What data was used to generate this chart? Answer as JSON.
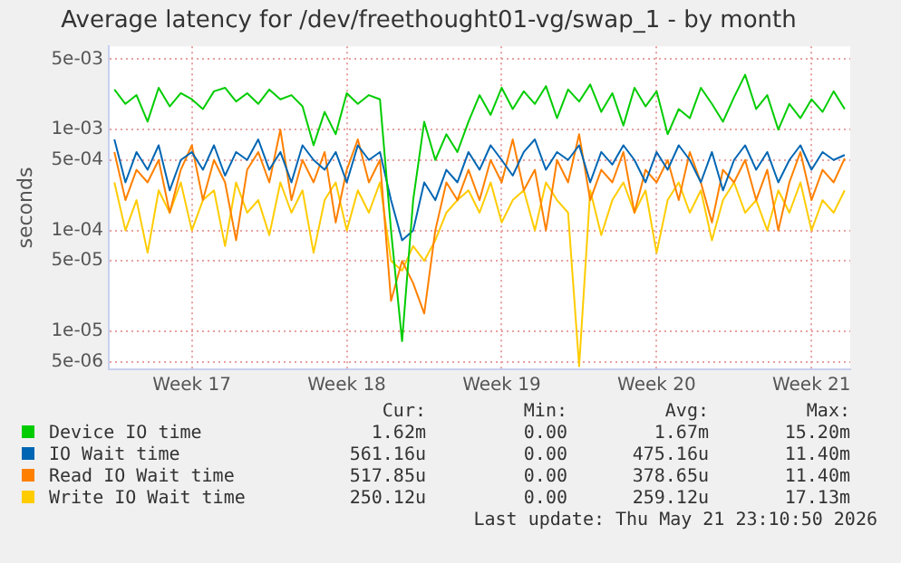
{
  "chart_data": {
    "type": "line",
    "title": "Average latency for /dev/freethought01-vg/swap_1 - by month",
    "ylabel": "seconds",
    "categories": [
      null,
      null,
      null,
      null,
      null,
      null,
      null,
      "Week 17",
      null,
      null,
      null,
      null,
      null,
      null,
      null,
      null,
      null,
      null,
      null,
      null,
      null,
      "Week 18",
      null,
      null,
      null,
      null,
      null,
      null,
      null,
      null,
      null,
      null,
      null,
      null,
      null,
      "Week 19",
      null,
      null,
      null,
      null,
      null,
      null,
      null,
      null,
      null,
      null,
      null,
      null,
      null,
      "Week 20",
      null,
      null,
      null,
      null,
      null,
      null,
      null,
      null,
      null,
      null,
      null,
      null,
      null,
      "Week 21",
      null,
      null,
      null
    ],
    "ylim": [
      4.2e-06,
      0.0067
    ],
    "yticks": [
      {
        "value": 5e-06,
        "label": "5e-06"
      },
      {
        "value": 1e-05,
        "label": "1e-05"
      },
      {
        "value": 5e-05,
        "label": "5e-05"
      },
      {
        "value": 0.0001,
        "label": "1e-04"
      },
      {
        "value": 0.0005,
        "label": "5e-04"
      },
      {
        "value": 0.001,
        "label": "1e-03"
      },
      {
        "value": 0.005,
        "label": "5e-03"
      }
    ],
    "log": "y",
    "grid": true,
    "legend": "bottom",
    "series": [
      {
        "name": "Device IO time",
        "color": "#00cc00",
        "values": [
          0.0025,
          0.0018,
          0.0022,
          0.0012,
          0.0026,
          0.0017,
          0.0023,
          0.002,
          0.0016,
          0.0024,
          0.0026,
          0.0019,
          0.0023,
          0.0018,
          0.0025,
          0.002,
          0.0022,
          0.0017,
          0.0007,
          0.0015,
          0.0009,
          0.0023,
          0.0018,
          0.0022,
          0.002,
          0.0001,
          8e-06,
          0.0002,
          0.0012,
          0.0005,
          0.0009,
          0.0006,
          0.0012,
          0.0022,
          0.0014,
          0.0026,
          0.0016,
          0.0024,
          0.0018,
          0.0027,
          0.0013,
          0.0025,
          0.0019,
          0.0028,
          0.0015,
          0.0023,
          0.0011,
          0.0026,
          0.0017,
          0.0024,
          0.0009,
          0.0016,
          0.0013,
          0.0026,
          0.0018,
          0.0012,
          0.0021,
          0.0035,
          0.0016,
          0.0022,
          0.001,
          0.0018,
          0.0013,
          0.002,
          0.0015,
          0.0024,
          0.0016
        ]
      },
      {
        "name": "IO Wait time",
        "color": "#0066b3",
        "values": [
          0.0008,
          0.0003,
          0.0006,
          0.0004,
          0.0007,
          0.00025,
          0.0005,
          0.0006,
          0.0004,
          0.0007,
          0.00035,
          0.0006,
          0.0005,
          0.0008,
          0.0004,
          0.0006,
          0.0003,
          0.0007,
          0.0005,
          0.0004,
          0.0006,
          0.0003,
          0.0007,
          0.0005,
          0.0006,
          0.0002,
          8e-05,
          0.0001,
          0.0003,
          0.0002,
          0.0004,
          0.0003,
          0.0006,
          0.0004,
          0.0007,
          0.0005,
          0.00035,
          0.0006,
          0.0008,
          0.0004,
          0.0006,
          0.0005,
          0.0007,
          0.0003,
          0.0006,
          0.00045,
          0.0007,
          0.0005,
          0.0003,
          0.0006,
          0.0004,
          0.0007,
          0.0005,
          0.0003,
          0.0006,
          0.00025,
          0.0005,
          0.0007,
          0.0004,
          0.0006,
          0.0003,
          0.0005,
          0.0007,
          0.0004,
          0.0006,
          0.0005,
          0.00056
        ]
      },
      {
        "name": "Read IO Wait time",
        "color": "#ff8000",
        "values": [
          0.0006,
          0.0002,
          0.0004,
          0.0003,
          0.0005,
          0.00015,
          0.0004,
          0.0007,
          0.0002,
          0.0005,
          0.0003,
          8e-05,
          0.0004,
          0.0006,
          0.0003,
          0.001,
          0.0002,
          0.0005,
          0.0003,
          0.0006,
          0.00012,
          0.0004,
          0.0008,
          0.0003,
          0.0005,
          2e-05,
          5e-05,
          3e-05,
          1.5e-05,
          0.0001,
          0.0003,
          0.0002,
          0.0004,
          0.0002,
          0.0005,
          0.0003,
          0.0008,
          0.00025,
          0.0004,
          0.0001,
          0.0005,
          0.0003,
          0.0009,
          0.0002,
          0.0004,
          0.0003,
          0.0006,
          0.00015,
          0.0004,
          0.0003,
          0.0005,
          0.0002,
          0.0006,
          0.0003,
          0.00012,
          0.0004,
          0.0003,
          0.0005,
          0.0002,
          0.0004,
          0.0001,
          0.0003,
          0.0006,
          0.0002,
          0.0004,
          0.0003,
          0.00052
        ]
      },
      {
        "name": "Write IO Wait time",
        "color": "#ffcc00",
        "values": [
          0.0003,
          0.0001,
          0.0002,
          6e-05,
          0.00025,
          0.00015,
          0.0003,
          0.0001,
          0.0002,
          0.00025,
          7e-05,
          0.0003,
          0.00015,
          0.0002,
          9e-05,
          0.0003,
          0.00015,
          0.00025,
          6e-05,
          0.0002,
          0.0003,
          0.0001,
          0.00025,
          0.00015,
          0.0003,
          5e-05,
          4e-05,
          7e-05,
          5e-05,
          8e-05,
          0.00015,
          0.0002,
          0.00025,
          0.00015,
          0.0003,
          0.00012,
          0.0002,
          0.00025,
          0.0001,
          0.0003,
          0.0002,
          0.00015,
          4.5e-06,
          0.00025,
          9e-05,
          0.0002,
          0.0003,
          0.00015,
          0.00025,
          6e-05,
          0.0002,
          0.0003,
          0.00015,
          0.00025,
          8e-05,
          0.0002,
          0.0003,
          0.00015,
          0.0002,
          0.0001,
          0.00025,
          0.00015,
          0.0003,
          0.0001,
          0.0002,
          0.00015,
          0.00025
        ]
      }
    ],
    "annotations": [
      "Cur:",
      "Min:",
      "Avg:",
      "Max:",
      "1.62m",
      "0.00",
      "1.67m",
      "15.20m",
      "561.16u",
      "0.00",
      "475.16u",
      "11.40m",
      "517.85u",
      "0.00",
      "378.65u",
      "11.40m",
      "250.12u",
      "0.00",
      "259.12u",
      "17.13m",
      "Last update: Thu May 21 23:10:50 2026"
    ]
  }
}
